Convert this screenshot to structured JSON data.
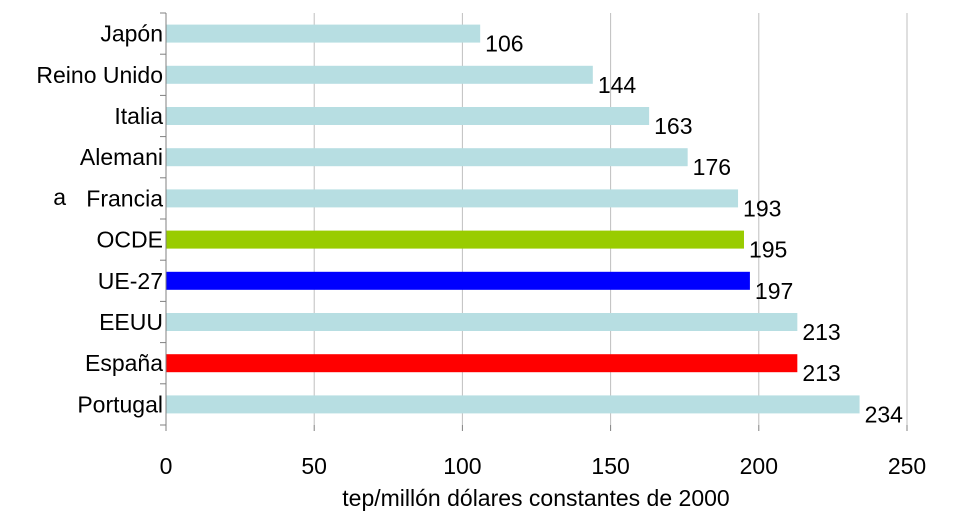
{
  "chart_data": {
    "type": "bar",
    "orientation": "horizontal",
    "title": "",
    "xlabel": "tep/millón dólares constantes de 2000",
    "ylabel": "",
    "xlim": [
      0,
      250
    ],
    "xticks": [
      0,
      50,
      100,
      150,
      200,
      250
    ],
    "grid": true,
    "legend": "none",
    "categories": [
      "Japón",
      "Reino Unido",
      "Italia",
      "Alemani a",
      "Francia",
      "OCDE",
      "UE-27",
      "EEUU",
      "España",
      "Portugal"
    ],
    "category_labels": [
      "Japón",
      "Reino Unido",
      "Italia",
      "Alemani",
      "Francia",
      "OCDE",
      "UE-27",
      "EEUU",
      "España",
      "Portugal"
    ],
    "category_label_fragments": [
      {
        "index": 3,
        "text": "a"
      }
    ],
    "values": [
      106,
      144,
      163,
      176,
      193,
      195,
      197,
      213,
      213,
      234
    ],
    "colors": [
      "#B7DEE2",
      "#B7DEE2",
      "#B7DEE2",
      "#B7DEE2",
      "#B7DEE2",
      "#99CC00",
      "#0000FF",
      "#B7DEE2",
      "#FF0000",
      "#B7DEE2"
    ]
  }
}
